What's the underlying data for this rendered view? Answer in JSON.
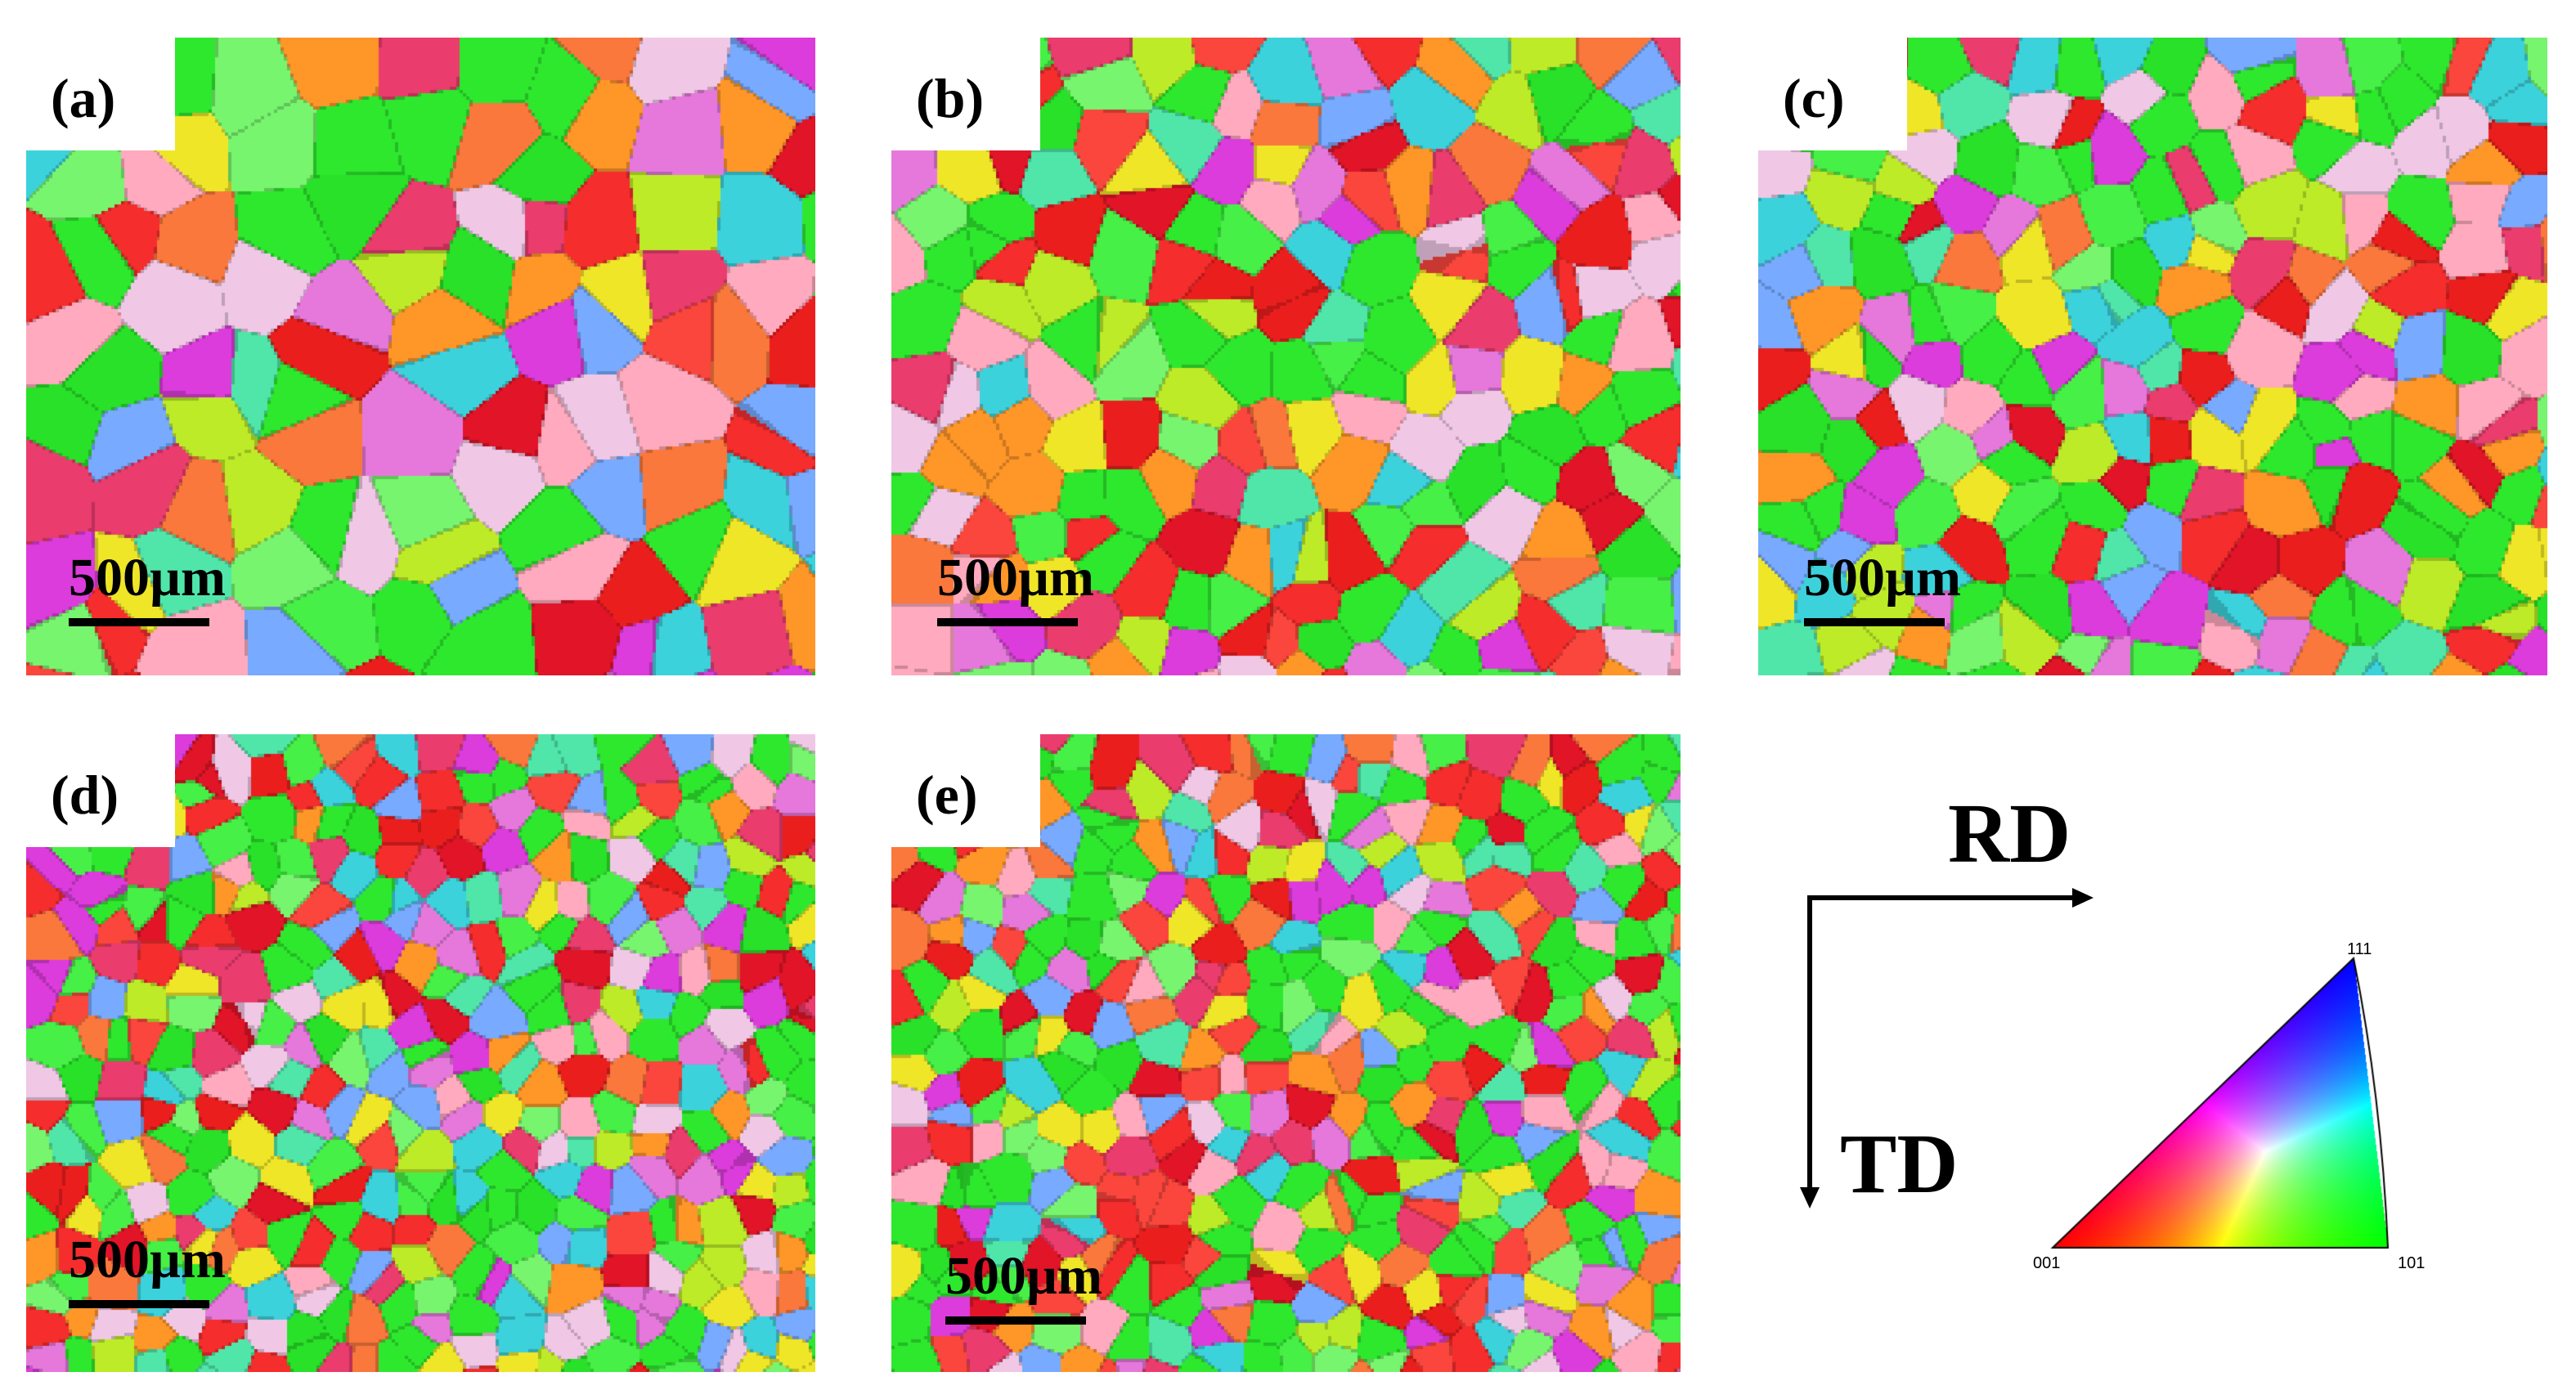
{
  "figure": {
    "panels": [
      {
        "label": "(a)",
        "scale_bar": "500µm"
      },
      {
        "label": "(b)",
        "scale_bar": "500µm"
      },
      {
        "label": "(c)",
        "scale_bar": "500µm"
      },
      {
        "label": "(d)",
        "scale_bar": "500µm"
      },
      {
        "label": "(e)",
        "scale_bar": "500µm"
      }
    ],
    "axes": {
      "rd": "RD",
      "td": "TD"
    },
    "ipf_key": {
      "top": "111",
      "left": "001",
      "right": "101"
    },
    "colors": {
      "orient_001": "#ff1a1a",
      "orient_101": "#1aee1a",
      "orient_111": "#1a1aff",
      "text": "#000000"
    }
  }
}
